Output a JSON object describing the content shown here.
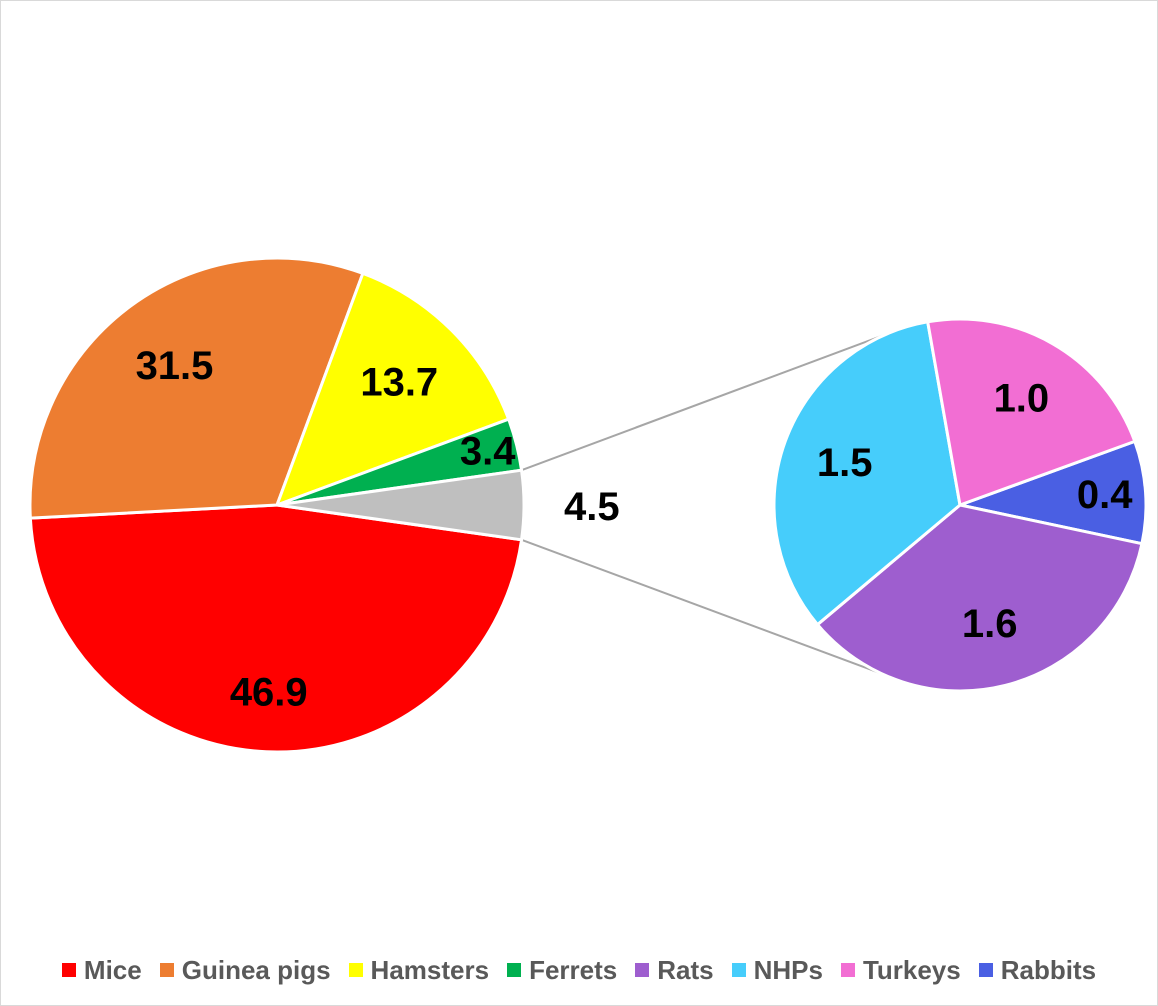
{
  "chart_data": {
    "type": "pie",
    "subtype": "pie-of-pie",
    "title": "",
    "grid": false,
    "legend_position": "bottom",
    "main_pie": [
      {
        "name": "Mice",
        "value": 46.9,
        "color": "#ff0000"
      },
      {
        "name": "Guinea pigs",
        "value": 31.5,
        "color": "#ed7d31"
      },
      {
        "name": "Hamsters",
        "value": 13.7,
        "color": "#ffff00"
      },
      {
        "name": "Ferrets",
        "value": 3.4,
        "color": "#00b050"
      }
    ],
    "other_slice": {
      "value": 4.5,
      "color": "#bfbfbf"
    },
    "secondary_pie": [
      {
        "name": "Rats",
        "value": 1.6,
        "color": "#9e5ecf"
      },
      {
        "name": "NHPs",
        "value": 1.5,
        "color": "#46cdfb"
      },
      {
        "name": "Turkeys",
        "value": 1.0,
        "color": "#f26ed3"
      },
      {
        "name": "Rabbits",
        "value": 0.4,
        "color": "#4a5fe3"
      }
    ],
    "main_labels": [
      "46.9",
      "31.5",
      "13.7",
      "3.4"
    ],
    "other_label": "4.5",
    "secondary_labels": [
      "1.6",
      "1.5",
      "1.0",
      "0.4"
    ]
  },
  "legend": {
    "items": [
      {
        "label": "Mice",
        "color": "#ff0000"
      },
      {
        "label": "Guinea pigs",
        "color": "#ed7d31"
      },
      {
        "label": "Hamsters",
        "color": "#ffff00"
      },
      {
        "label": "Ferrets",
        "color": "#00b050"
      },
      {
        "label": "Rats",
        "color": "#9e5ecf"
      },
      {
        "label": "NHPs",
        "color": "#46cdfb"
      },
      {
        "label": "Turkeys",
        "color": "#f26ed3"
      },
      {
        "label": "Rabbits",
        "color": "#4a5fe3"
      }
    ]
  }
}
